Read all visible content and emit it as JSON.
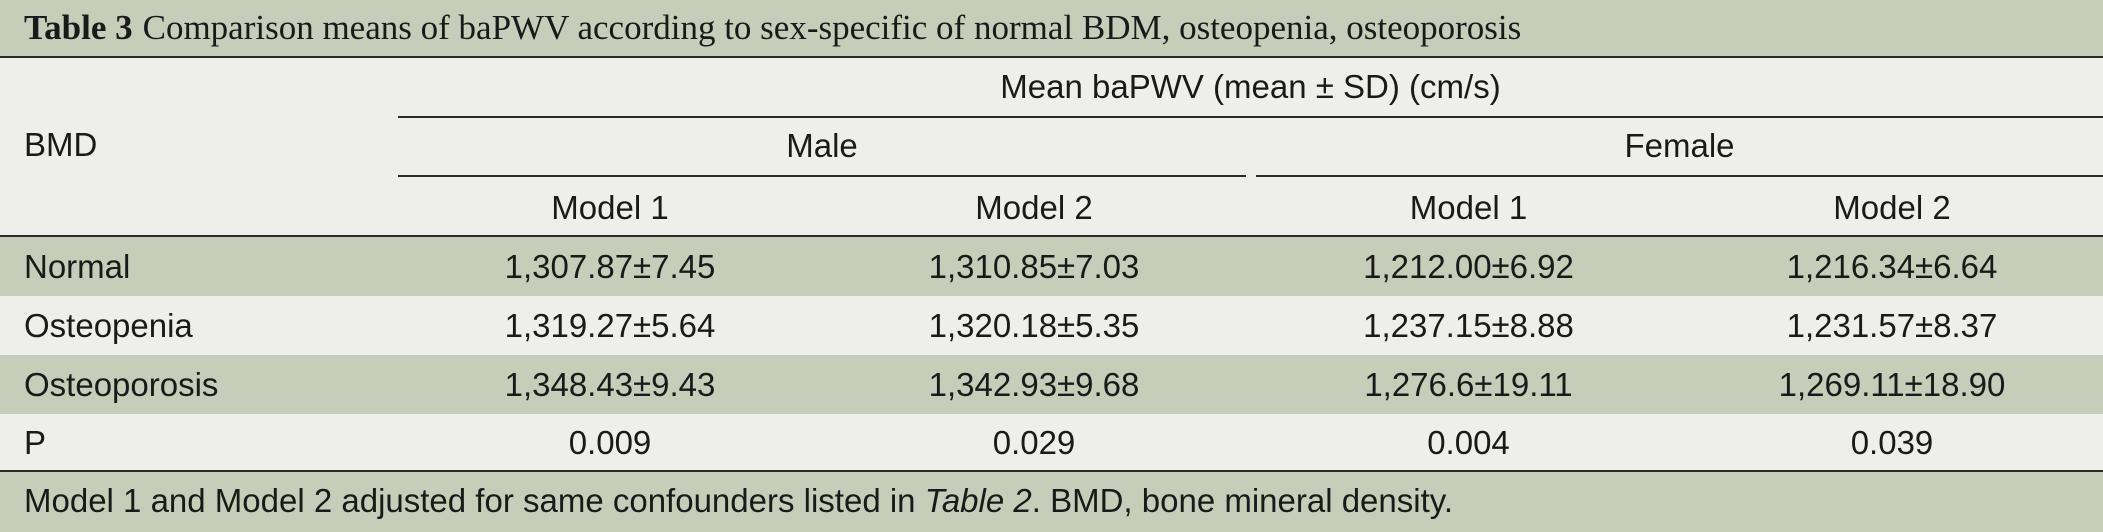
{
  "title": {
    "label": "Table 3",
    "text": "Comparison means of baPWV according to sex-specific of normal BDM, osteopenia, osteoporosis"
  },
  "header": {
    "stub": "BMD",
    "spanner": "Mean baPWV (mean ± SD) (cm/s)",
    "male": "Male",
    "female": "Female",
    "models": [
      "Model 1",
      "Model 2",
      "Model 1",
      "Model 2"
    ]
  },
  "rows": [
    {
      "label": "Normal",
      "values": [
        "1,307.87±7.45",
        "1,310.85±7.03",
        "1,212.00±6.92",
        "1,216.34±6.64"
      ]
    },
    {
      "label": "Osteopenia",
      "values": [
        "1,319.27±5.64",
        "1,320.18±5.35",
        "1,237.15±8.88",
        "1,231.57±8.37"
      ]
    },
    {
      "label": "Osteoporosis",
      "values": [
        "1,348.43±9.43",
        "1,342.93±9.68",
        "1,276.6±19.11",
        "1,269.11±18.90"
      ]
    },
    {
      "label": "P",
      "values": [
        "0.009",
        "0.029",
        "0.004",
        "0.039"
      ]
    }
  ],
  "footer": {
    "before": "Model 1 and Model 2 adjusted for same confounders listed in ",
    "ref": "Table 2",
    "after": ". BMD, bone mineral density."
  },
  "colors": {
    "band": "#c6cdb8",
    "background": "#eeefea",
    "rule": "#2a2a2a"
  }
}
